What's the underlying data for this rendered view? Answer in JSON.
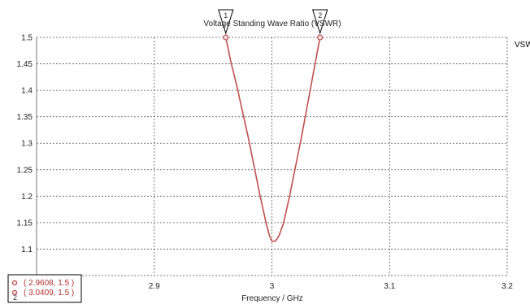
{
  "chart_data": {
    "type": "line",
    "title": "Voltage Standing Wave Ratio (VSWR)",
    "xlabel": "Frequency / GHz",
    "ylabel": "",
    "xlim": [
      2.8,
      3.2
    ],
    "ylim": [
      1.05,
      1.5
    ],
    "x_ticks": [
      "2.9",
      "3",
      "3.1",
      "3.2"
    ],
    "y_ticks": [
      "1.1",
      "1.15",
      "1.2",
      "1.25",
      "1.3",
      "1.35",
      "1.4",
      "1.45",
      "1.5"
    ],
    "grid": true,
    "legend_position": "right",
    "series": [
      {
        "name": "VSW",
        "color": "#c0504d",
        "x": [
          2.9608,
          2.965,
          2.97,
          2.975,
          2.98,
          2.985,
          2.99,
          2.995,
          2.998,
          3.0,
          3.003,
          3.006,
          3.01,
          3.015,
          3.02,
          3.025,
          3.03,
          3.035,
          3.0409
        ],
        "y": [
          1.5,
          1.455,
          1.41,
          1.36,
          1.31,
          1.255,
          1.2,
          1.15,
          1.125,
          1.115,
          1.115,
          1.125,
          1.15,
          1.2,
          1.255,
          1.31,
          1.37,
          1.43,
          1.5
        ]
      }
    ],
    "markers": [
      {
        "id": "1",
        "x": 2.9608,
        "y": 1.5,
        "label": "( 2.9608, 1.5 )"
      },
      {
        "id": "2",
        "x": 3.0409,
        "y": 1.5,
        "label": "( 3.0409, 1.5 )"
      }
    ]
  },
  "colors": {
    "series": "#c0504d",
    "grid": "#555555",
    "frame": "#777777",
    "marker_outline": "#000000"
  }
}
